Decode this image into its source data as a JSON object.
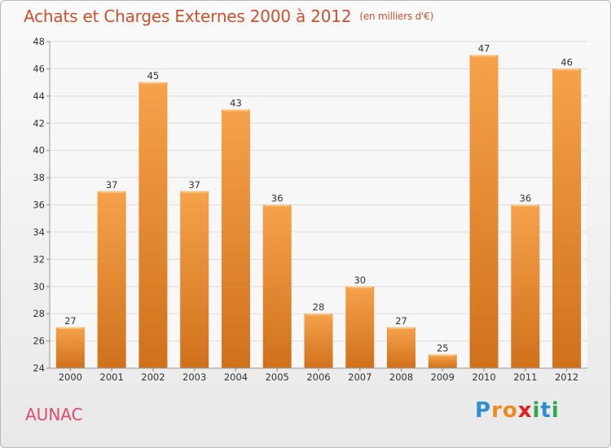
{
  "title": "Achats et Charges Externes 2000 à 2012",
  "unit": "(en milliers d'€)",
  "commune": "AUNAC",
  "brand": {
    "letters": [
      "P",
      "r",
      "o",
      "x",
      "i",
      "t",
      "i"
    ],
    "colors": [
      "#2f8fd3",
      "#f08a1c",
      "#f08a1c",
      "#e02020",
      "#2fa84f",
      "#2f8fd3",
      "#2fa84f"
    ]
  },
  "colors": {
    "bar_top": "#f6a24a",
    "bar_bottom": "#d0711c",
    "title": "#c8522e",
    "label": "#e04a6e",
    "grid": "#dedede"
  },
  "chart_data": {
    "type": "bar",
    "categories": [
      "2000",
      "2001",
      "2002",
      "2003",
      "2004",
      "2005",
      "2006",
      "2007",
      "2008",
      "2009",
      "2010",
      "2011",
      "2012"
    ],
    "values": [
      27,
      37,
      45,
      37,
      43,
      36,
      28,
      30,
      27,
      25,
      47,
      36,
      46
    ],
    "ylim": [
      24,
      48
    ],
    "yticks": [
      24,
      26,
      28,
      30,
      32,
      34,
      36,
      38,
      40,
      42,
      44,
      46,
      48
    ],
    "grid": true,
    "xlabel": "",
    "ylabel": ""
  }
}
